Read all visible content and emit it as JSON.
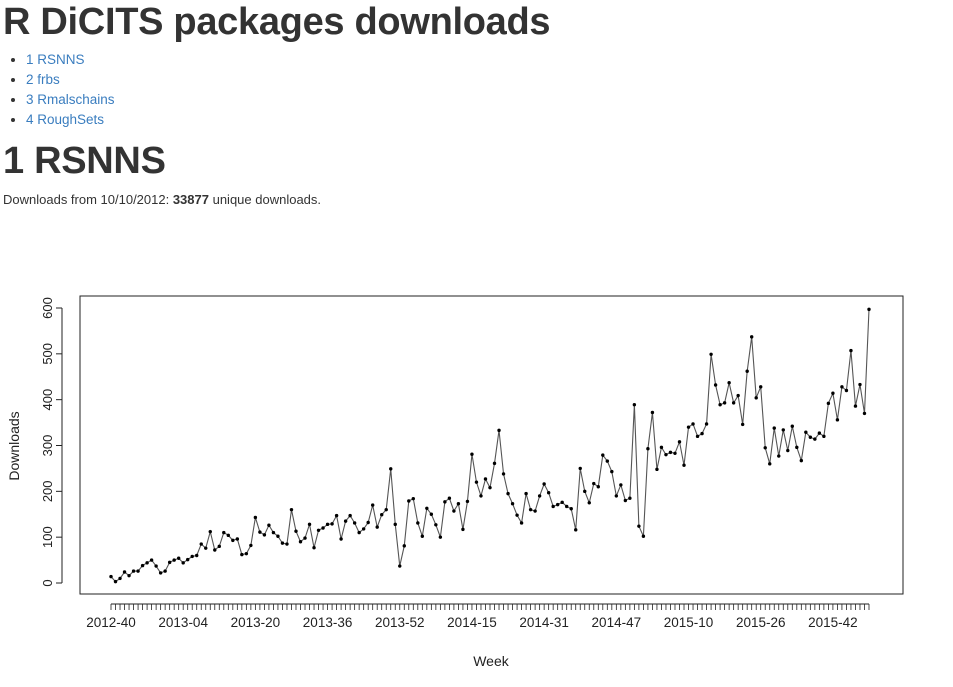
{
  "header": {
    "title": "R DiCITS packages downloads"
  },
  "toc": [
    {
      "label": "1 RSNNS"
    },
    {
      "label": "2 frbs"
    },
    {
      "label": "3 Rmalschains"
    },
    {
      "label": "4 RoughSets"
    }
  ],
  "section": {
    "title": "1 RSNNS",
    "summary_prefix": "Downloads from 10/10/2012: ",
    "summary_count": "33877",
    "summary_suffix": " unique downloads."
  },
  "colors": {
    "link": "#3a7dbf",
    "line": "#555555",
    "point": "#000000"
  },
  "chart_data": {
    "type": "line",
    "xlabel": "Week",
    "ylabel": "Downloads",
    "ylim": [
      0,
      600
    ],
    "yticks": [
      0,
      100,
      200,
      300,
      400,
      500,
      600
    ],
    "xtick_labels": [
      {
        "index": 0,
        "label": "2012-40"
      },
      {
        "index": 16,
        "label": "2013-04"
      },
      {
        "index": 32,
        "label": "2013-20"
      },
      {
        "index": 48,
        "label": "2013-36"
      },
      {
        "index": 64,
        "label": "2013-52"
      },
      {
        "index": 80,
        "label": "2014-15"
      },
      {
        "index": 96,
        "label": "2014-31"
      },
      {
        "index": 112,
        "label": "2014-47"
      },
      {
        "index": 128,
        "label": "2015-10"
      },
      {
        "index": 144,
        "label": "2015-26"
      },
      {
        "index": 160,
        "label": "2015-42"
      }
    ],
    "series": [
      {
        "values": [
          14,
          3,
          10,
          24,
          16,
          26,
          26,
          38,
          44,
          50,
          37,
          22,
          26,
          45,
          50,
          54,
          44,
          51,
          58,
          60,
          85,
          76,
          112,
          72,
          80,
          110,
          104,
          93,
          96,
          62,
          64,
          82,
          143,
          111,
          105,
          126,
          110,
          102,
          87,
          85,
          160,
          113,
          90,
          98,
          128,
          77,
          115,
          120,
          128,
          129,
          147,
          96,
          135,
          147,
          131,
          110,
          118,
          132,
          170,
          122,
          149,
          160,
          249,
          128,
          37,
          81,
          179,
          184,
          131,
          102,
          163,
          150,
          127,
          100,
          177,
          185,
          157,
          173,
          117,
          178,
          281,
          220,
          190,
          227,
          208,
          261,
          333,
          238,
          195,
          173,
          148,
          131,
          195,
          160,
          157,
          190,
          216,
          197,
          167,
          171,
          176,
          167,
          162,
          116,
          250,
          200,
          175,
          217,
          210,
          279,
          266,
          243,
          190,
          214,
          180,
          185,
          389,
          124,
          102,
          293,
          372,
          248,
          296,
          280,
          285,
          283,
          308,
          257,
          340,
          347,
          320,
          326,
          347,
          499,
          432,
          389,
          393,
          437,
          393,
          409,
          346,
          462,
          537,
          404,
          428,
          295,
          260,
          338,
          277,
          334,
          289,
          342,
          296,
          267,
          329,
          318,
          314,
          327,
          320,
          392,
          414,
          356,
          428,
          420,
          507,
          386,
          433,
          370,
          597
        ]
      }
    ]
  }
}
